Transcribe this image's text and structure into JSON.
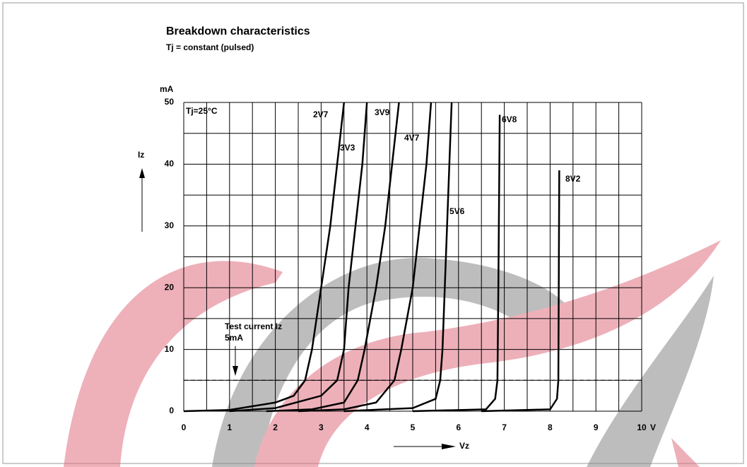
{
  "chart_data": {
    "type": "line",
    "title": "Breakdown characteristics",
    "subtitle": "Tj = constant (pulsed)",
    "x_unit": "V",
    "y_unit": "mA",
    "x_label": "Vz",
    "y_label": "Iz",
    "condition": "Tj=25°C",
    "reference_line": {
      "value": 5,
      "label_top": "Test current Iz",
      "label_bottom": "5mA"
    },
    "xlim": [
      0,
      10
    ],
    "ylim": [
      0,
      50
    ],
    "xticks": [
      0,
      1,
      2,
      3,
      4,
      5,
      6,
      7,
      8,
      9,
      10
    ],
    "yticks": [
      0,
      10,
      20,
      30,
      40,
      50
    ],
    "xgrid": [
      0,
      0.5,
      1,
      1.5,
      2,
      2.5,
      3,
      3.5,
      4,
      4.5,
      5,
      5.5,
      6,
      6.5,
      7,
      7.5,
      8,
      8.5,
      9,
      9.5,
      10
    ],
    "ygrid": [
      0,
      5,
      10,
      15,
      20,
      25,
      30,
      35,
      40,
      45,
      50
    ],
    "series": [
      {
        "name": "2V7",
        "color": "#000000",
        "x": [
          0,
          1,
          2,
          2.4,
          2.65,
          2.8,
          3.0,
          3.2,
          3.35,
          3.5
        ],
        "values": [
          0,
          0.2,
          1.4,
          2.5,
          5,
          10,
          20,
          30,
          40,
          50
        ]
      },
      {
        "name": "3V3",
        "color": "#000000",
        "x": [
          1,
          2,
          3,
          3.35,
          3.5,
          3.6,
          3.75,
          3.9,
          4.0
        ],
        "values": [
          0,
          0.5,
          2.5,
          5,
          10,
          20,
          30,
          40,
          50
        ]
      },
      {
        "name": "3V9",
        "color": "#000000",
        "x": [
          1.8,
          2.8,
          3.5,
          3.8,
          3.95,
          4.2,
          4.4,
          4.55,
          4.7
        ],
        "values": [
          0,
          0.3,
          1.4,
          5,
          10,
          20,
          30,
          40,
          50
        ]
      },
      {
        "name": "4V7",
        "color": "#000000",
        "x": [
          2.5,
          3.5,
          4.2,
          4.6,
          4.75,
          5.0,
          5.15,
          5.3,
          5.4
        ],
        "values": [
          0,
          0.3,
          1.4,
          5,
          10,
          20,
          30,
          40,
          50
        ]
      },
      {
        "name": "5V6",
        "color": "#000000",
        "x": [
          3.5,
          5.0,
          5.5,
          5.6,
          5.65,
          5.7,
          5.75,
          5.8,
          5.85
        ],
        "values": [
          0,
          0.5,
          2,
          5,
          10,
          20,
          30,
          40,
          50
        ]
      },
      {
        "name": "6V8",
        "color": "#000000",
        "x": [
          5,
          6.6,
          6.8,
          6.85,
          6.87,
          6.9
        ],
        "values": [
          0,
          0.3,
          2,
          5,
          20,
          48
        ]
      },
      {
        "name": "8V2",
        "color": "#000000",
        "x": [
          6.5,
          8.0,
          8.15,
          8.18,
          8.2
        ],
        "values": [
          0,
          0.3,
          2,
          5,
          39
        ]
      }
    ],
    "grid": true
  }
}
